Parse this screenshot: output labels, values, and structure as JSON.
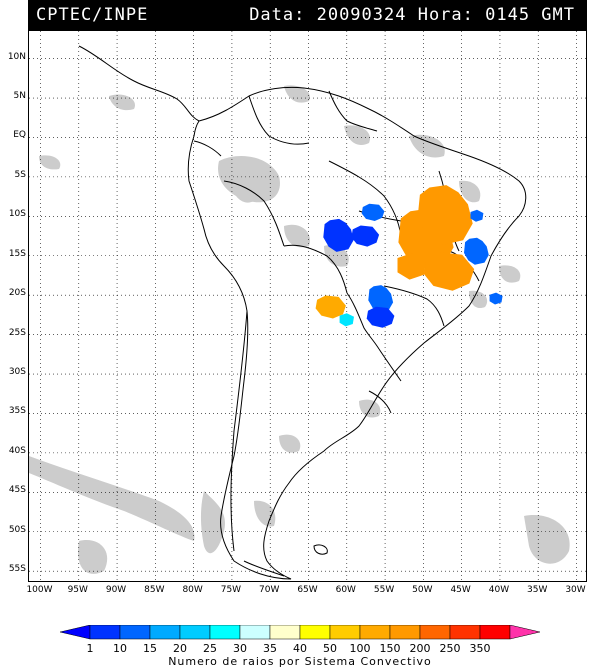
{
  "header": {
    "source": "CPTEC/INPE",
    "datetime": "Data: 20090324 Hora: 0145 GMT"
  },
  "map": {
    "lat_labels": [
      "10N",
      "5N",
      "EQ",
      "5S",
      "10S",
      "15S",
      "20S",
      "25S",
      "30S",
      "35S",
      "40S",
      "45S",
      "50S",
      "55S"
    ],
    "lon_labels": [
      "100W",
      "95W",
      "90W",
      "85W",
      "80W",
      "75W",
      "70W",
      "65W",
      "60W",
      "55W",
      "50W",
      "45W",
      "40W",
      "35W",
      "30W"
    ],
    "lat_values": [
      10,
      5,
      0,
      -5,
      -10,
      -15,
      -20,
      -25,
      -30,
      -35,
      -40,
      -45,
      -50,
      -55
    ],
    "lon_values": [
      -100,
      -95,
      -90,
      -85,
      -80,
      -75,
      -70,
      -65,
      -60,
      -55,
      -50,
      -45,
      -40,
      -35,
      -30
    ],
    "lon_range": [
      -101.5,
      -28.5
    ],
    "lat_range": [
      -56.5,
      13.5
    ],
    "grid": "dotted",
    "cloud_color": "#c8c8c8",
    "land_outline_color": "#000000"
  },
  "convective_systems": [
    {
      "class": "150",
      "color": "#ff9900",
      "lat": -13.0,
      "lon": -49.5
    },
    {
      "class": "150",
      "color": "#ff9900",
      "lat": -17.0,
      "lon": -46.5
    },
    {
      "class": "150",
      "color": "#ff9900",
      "lat": -16.5,
      "lon": -51.5
    },
    {
      "class": "150",
      "color": "#ff9900",
      "lat": -10.0,
      "lon": -47.0
    },
    {
      "class": "100",
      "color": "#ffaa00",
      "lat": -21.5,
      "lon": -62.0
    },
    {
      "class": "30",
      "color": "#00e5ff",
      "lat": -23.2,
      "lon": -60.0
    },
    {
      "class": "10",
      "color": "#0033ff",
      "lat": -12.5,
      "lon": -61.0
    },
    {
      "class": "15",
      "color": "#0066ff",
      "lat": -9.5,
      "lon": -56.5
    },
    {
      "class": "15",
      "color": "#0066ff",
      "lat": -10.0,
      "lon": -43.0
    },
    {
      "class": "15",
      "color": "#0066ff",
      "lat": -20.5,
      "lon": -55.5
    },
    {
      "class": "10",
      "color": "#0033ff",
      "lat": -22.8,
      "lon": -55.5
    },
    {
      "class": "15",
      "color": "#0066ff",
      "lat": -20.5,
      "lon": -40.5
    },
    {
      "class": "15",
      "color": "#0066ff",
      "lat": -14.5,
      "lon": -43.0
    },
    {
      "class": "10",
      "color": "#0033ff",
      "lat": -12.5,
      "lon": -57.5
    }
  ],
  "colorbar": {
    "labels": [
      "1",
      "10",
      "15",
      "20",
      "25",
      "30",
      "35",
      "40",
      "50",
      "100",
      "150",
      "200",
      "250",
      "350"
    ],
    "colors": [
      "#0000ff",
      "#0033ff",
      "#0066ff",
      "#00aaff",
      "#00ccff",
      "#00ffff",
      "#ccffff",
      "#ffffcc",
      "#ffff00",
      "#ffcc00",
      "#ffaa00",
      "#ff9900",
      "#ff6600",
      "#ff3300",
      "#ff0000",
      "#ff33aa"
    ],
    "caption": "Numero de raios por Sistema Convectivo"
  }
}
